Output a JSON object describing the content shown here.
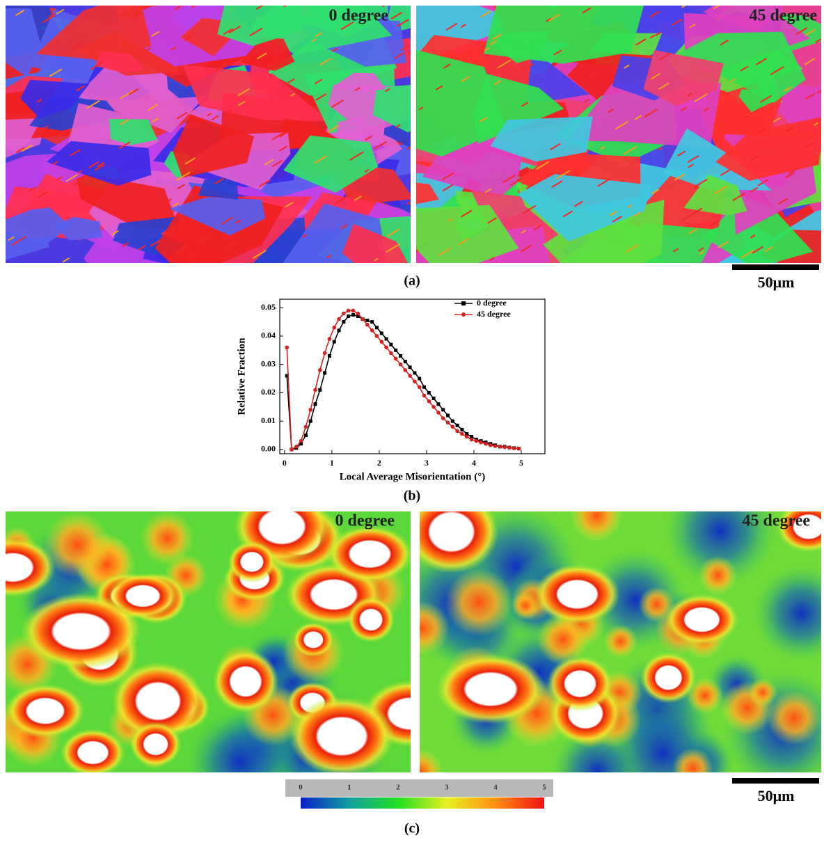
{
  "panel_a": {
    "left_label": "0 degree",
    "right_label": "45 degree",
    "scale_bar": "50μm",
    "caption": "(a)"
  },
  "chart_data": {
    "type": "line",
    "caption": "(b)",
    "x_label": "Local Average Misorientation (°)",
    "y_label": "Relative Fraction",
    "x": [
      0.05,
      0.15,
      0.25,
      0.35,
      0.45,
      0.55,
      0.65,
      0.75,
      0.85,
      0.95,
      1.05,
      1.15,
      1.25,
      1.35,
      1.45,
      1.55,
      1.65,
      1.75,
      1.85,
      1.95,
      2.05,
      2.15,
      2.25,
      2.35,
      2.45,
      2.55,
      2.65,
      2.75,
      2.85,
      2.95,
      3.05,
      3.15,
      3.25,
      3.35,
      3.45,
      3.55,
      3.65,
      3.75,
      3.85,
      3.95,
      4.05,
      4.15,
      4.25,
      4.35,
      4.45,
      4.55,
      4.65,
      4.75,
      4.85,
      4.95
    ],
    "series": [
      {
        "name": "0 degree",
        "color": "#000000",
        "marker": "square",
        "values": [
          0.026,
          0,
          0.0005,
          0.002,
          0.005,
          0.01,
          0.016,
          0.021,
          0.027,
          0.033,
          0.038,
          0.042,
          0.045,
          0.047,
          0.0475,
          0.047,
          0.046,
          0.0455,
          0.045,
          0.043,
          0.041,
          0.039,
          0.037,
          0.035,
          0.033,
          0.031,
          0.029,
          0.027,
          0.025,
          0.022,
          0.02,
          0.018,
          0.016,
          0.014,
          0.012,
          0.01,
          0.0085,
          0.007,
          0.0055,
          0.0045,
          0.0035,
          0.003,
          0.0025,
          0.002,
          0.0015,
          0.001,
          0.001,
          0.0007,
          0.0005,
          0.0003
        ]
      },
      {
        "name": "45 degree",
        "color": "#d42020",
        "marker": "circle",
        "values": [
          0.036,
          0,
          0.001,
          0.003,
          0.008,
          0.014,
          0.021,
          0.028,
          0.034,
          0.039,
          0.043,
          0.046,
          0.048,
          0.049,
          0.049,
          0.048,
          0.046,
          0.044,
          0.042,
          0.04,
          0.038,
          0.036,
          0.034,
          0.032,
          0.03,
          0.028,
          0.026,
          0.024,
          0.022,
          0.019,
          0.017,
          0.015,
          0.013,
          0.011,
          0.0095,
          0.008,
          0.0065,
          0.0055,
          0.0045,
          0.0035,
          0.003,
          0.0025,
          0.002,
          0.0015,
          0.0012,
          0.001,
          0.0008,
          0.0006,
          0.0004,
          0.0003
        ]
      }
    ],
    "xlim": [
      -0.1,
      5.5
    ],
    "xticks": [
      0,
      1,
      2,
      3,
      4,
      5
    ],
    "ylim": [
      -0.0015,
      0.053
    ],
    "yticks": [
      {
        "value": 0,
        "label": "0.00"
      },
      0.01,
      0.02,
      0.03,
      0.04,
      0.05
    ],
    "legend": "upper right"
  },
  "panel_c": {
    "left_label": "0 degree",
    "right_label": "45 degree",
    "scale_bar": "50μm",
    "caption": "(c)",
    "colorbar_ticks": [
      0,
      1,
      2,
      3,
      4,
      5
    ]
  }
}
